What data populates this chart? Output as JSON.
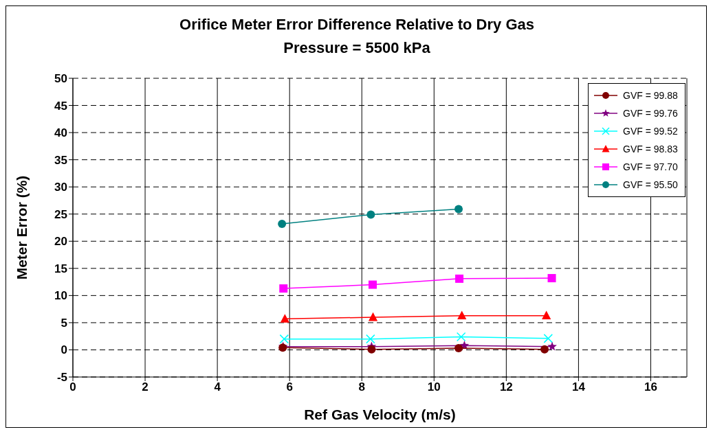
{
  "chart_data": {
    "type": "line",
    "title": "Orifice Meter Error Difference Relative to Dry Gas",
    "subtitle": "Pressure = 5500 kPa",
    "xlabel": "Ref Gas Velocity (m/s)",
    "ylabel": "Meter Error (%)",
    "xlim": [
      0,
      17
    ],
    "xticks": [
      0,
      2,
      4,
      6,
      8,
      10,
      12,
      14,
      16
    ],
    "ylim": [
      -5,
      50
    ],
    "yticks": [
      -5,
      0,
      5,
      10,
      15,
      20,
      25,
      30,
      35,
      40,
      45,
      50
    ],
    "grid": true,
    "legend": "top right",
    "series": [
      {
        "name": "GVF = 99.88",
        "color": "#800000",
        "marker": "circle",
        "x": [
          5.81,
          8.27,
          10.68,
          13.06
        ],
        "values": [
          0.4,
          0.1,
          0.3,
          0.1
        ]
      },
      {
        "name": "GVF = 99.76",
        "color": "#800080",
        "marker": "star",
        "x": [
          5.82,
          8.27,
          10.84,
          13.27
        ],
        "values": [
          0.6,
          0.6,
          0.8,
          0.6
        ]
      },
      {
        "name": "GVF = 99.52",
        "color": "#00ffff",
        "marker": "cross",
        "x": [
          5.85,
          8.24,
          10.75,
          13.16
        ],
        "values": [
          2.0,
          2.0,
          2.4,
          2.1
        ]
      },
      {
        "name": "GVF = 98.83",
        "color": "#ff0000",
        "marker": "triangle",
        "x": [
          5.87,
          8.31,
          10.77,
          13.11
        ],
        "values": [
          5.7,
          6.0,
          6.3,
          6.3
        ]
      },
      {
        "name": "GVF = 97.70",
        "color": "#ff00ff",
        "marker": "square",
        "x": [
          5.83,
          8.3,
          10.7,
          13.26
        ],
        "values": [
          11.3,
          12.0,
          13.1,
          13.2
        ]
      },
      {
        "name": "GVF = 95.50",
        "color": "#008080",
        "marker": "circle",
        "x": [
          5.79,
          8.25,
          10.68
        ],
        "values": [
          23.2,
          24.9,
          25.9
        ]
      }
    ]
  }
}
